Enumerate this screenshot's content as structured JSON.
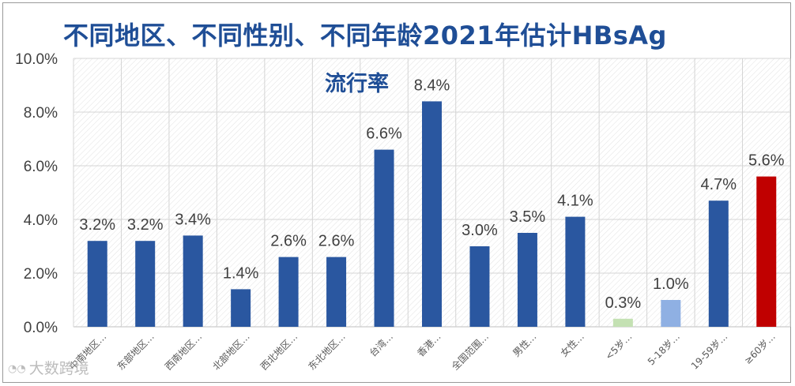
{
  "title": {
    "line1": "不同地区、不同性别、不同年龄2021年估计HBsAg",
    "line2": "流行率"
  },
  "watermark": "大数跨境",
  "colors": {
    "bar_default": "#2a57a0",
    "bar_age_under5": "#c4e1b3",
    "bar_age_5_18": "#8fb0e3",
    "bar_age_over60": "#c00000",
    "title": "#1f4e96"
  },
  "chart_data": {
    "type": "bar",
    "title": "不同地区、不同性别、不同年龄2021年估计HBsAg流行率",
    "xlabel": "",
    "ylabel": "",
    "ylim": [
      0,
      10
    ],
    "yticks": [
      "0.0%",
      "2.0%",
      "4.0%",
      "6.0%",
      "8.0%",
      "10.0%"
    ],
    "grid": true,
    "legend": "none",
    "categories": [
      "中南地区…",
      "东部地区…",
      "西南地区…",
      "北部地区…",
      "西北地区…",
      "东北地区…",
      "台湾…",
      "香港…",
      "全国范围…",
      "男性…",
      "女性…",
      "<5岁…",
      "5-18岁…",
      "19-59岁…",
      "≥60岁…"
    ],
    "values": [
      3.2,
      3.2,
      3.4,
      1.4,
      2.6,
      2.6,
      6.6,
      8.4,
      3.0,
      3.5,
      4.1,
      0.3,
      1.0,
      4.7,
      5.6
    ],
    "data_labels": [
      "3.2%",
      "3.2%",
      "3.4%",
      "1.4%",
      "2.6%",
      "2.6%",
      "6.6%",
      "8.4%",
      "3.0%",
      "3.5%",
      "4.1%",
      "0.3%",
      "1.0%",
      "4.7%",
      "5.6%"
    ],
    "bar_colors": [
      "#2a57a0",
      "#2a57a0",
      "#2a57a0",
      "#2a57a0",
      "#2a57a0",
      "#2a57a0",
      "#2a57a0",
      "#2a57a0",
      "#2a57a0",
      "#2a57a0",
      "#2a57a0",
      "#c4e1b3",
      "#8fb0e3",
      "#2a57a0",
      "#c00000"
    ]
  }
}
